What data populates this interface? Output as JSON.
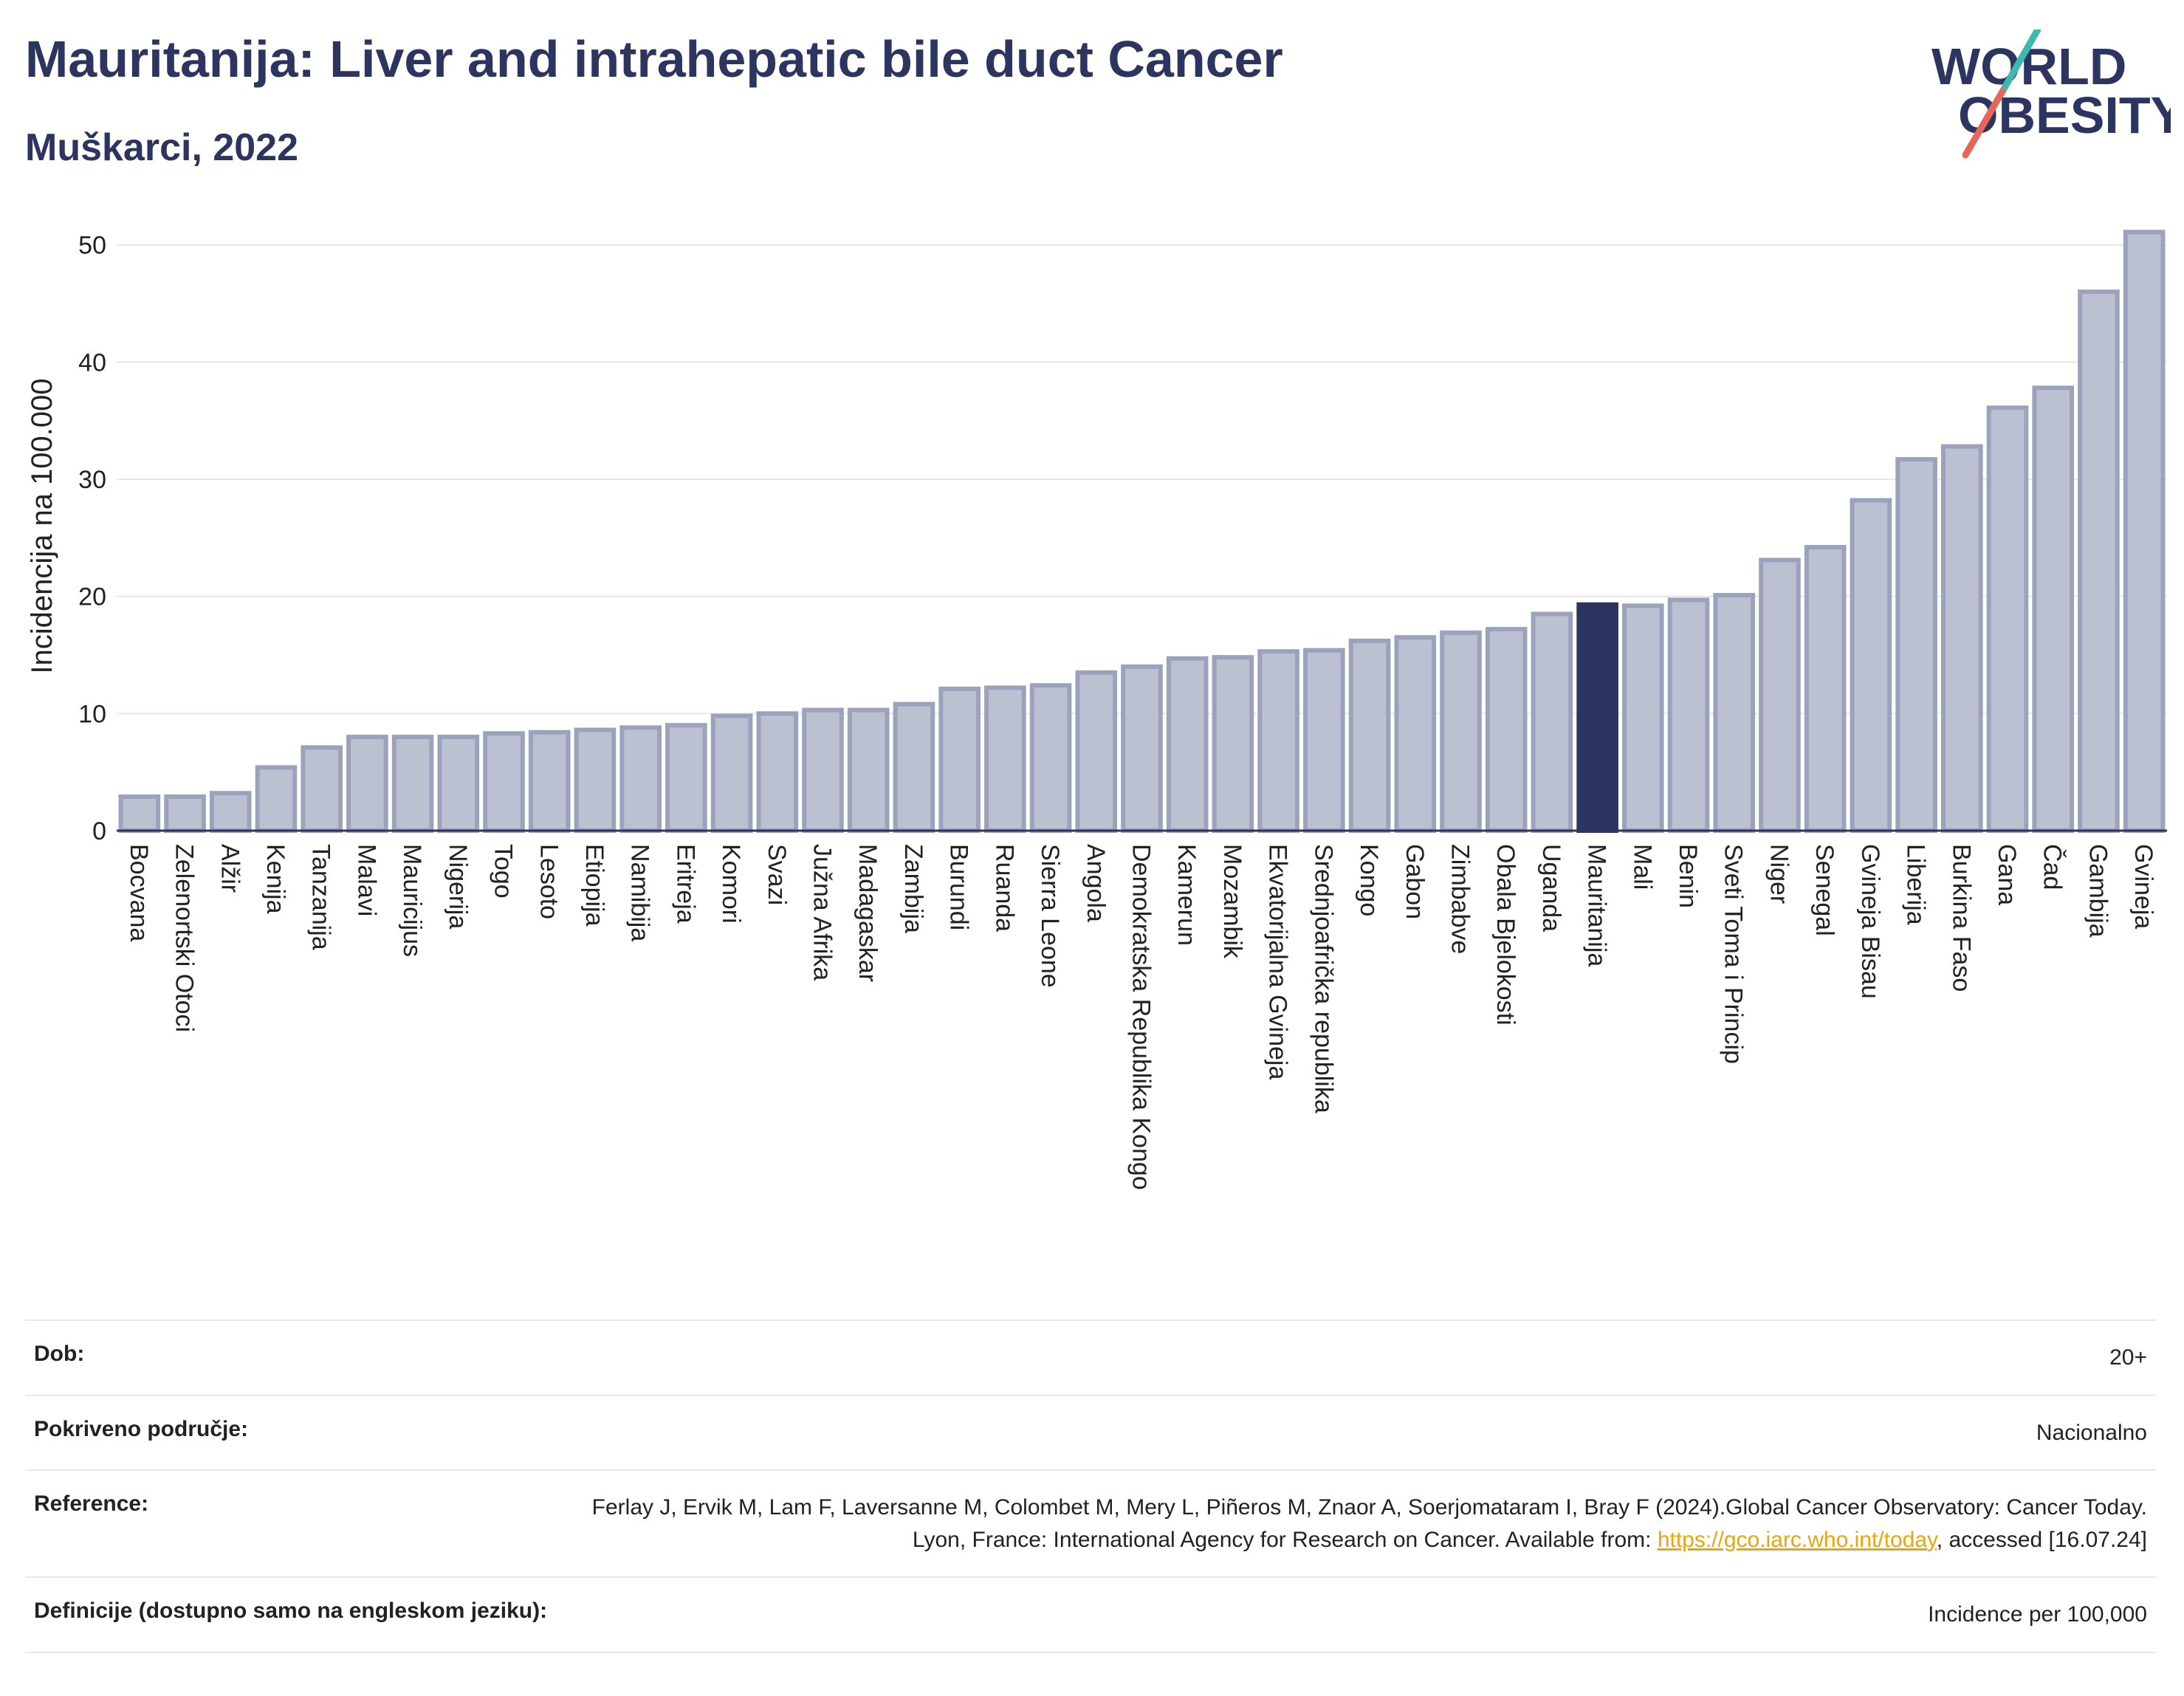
{
  "header": {
    "title": "Mauritanija: Liver and intrahepatic bile duct Cancer",
    "subtitle": "Muškarci, 2022"
  },
  "logo": {
    "line1": "WORLD",
    "line2": "OBESITY",
    "colors": {
      "slash_top": "#3fb8b0",
      "slash_bottom": "#e5675a",
      "text": "#2b3560"
    }
  },
  "colors": {
    "bar": "#bcc1d1",
    "bar_stroke": "#9ba2bb",
    "highlight": "#2b3560"
  },
  "chart_data": {
    "type": "bar",
    "ylabel": "Incidencija na 100.000",
    "ylim": [
      0,
      52
    ],
    "yticks": [
      0,
      10,
      20,
      30,
      40,
      50
    ],
    "grid": true,
    "highlight": "Mauritanija",
    "categories": [
      "Bocvana",
      "Zelenortski Otoci",
      "Alžir",
      "Kenija",
      "Tanzanija",
      "Malavi",
      "Mauricijus",
      "Nigerija",
      "Togo",
      "Lesoto",
      "Etiopija",
      "Namibija",
      "Eritreja",
      "Komori",
      "Svazi",
      "Južna Afrika",
      "Madagaskar",
      "Zambija",
      "Burundi",
      "Ruanda",
      "Sierra Leone",
      "Angola",
      "Demokratska Republika Kongo",
      "Kamerun",
      "Mozambik",
      "Ekvatorijalna Gvineja",
      "Srednjoafrička republika",
      "Kongo",
      "Gabon",
      "Zimbabve",
      "Obala Bjelokosti",
      "Uganda",
      "Mauritanija",
      "Mali",
      "Benin",
      "Sveti Toma i Princip",
      "Niger",
      "Senegal",
      "Gvineja Bisau",
      "Liberija",
      "Burkina Faso",
      "Gana",
      "Čad",
      "Gambija",
      "Gvineja"
    ],
    "values": [
      2.9,
      2.9,
      3.2,
      5.4,
      7.1,
      8.0,
      8.0,
      8.0,
      8.3,
      8.4,
      8.6,
      8.8,
      9.0,
      9.8,
      10.0,
      10.3,
      10.3,
      10.8,
      12.1,
      12.2,
      12.4,
      13.5,
      14.0,
      14.7,
      14.8,
      15.3,
      15.4,
      16.2,
      16.5,
      16.9,
      17.2,
      18.5,
      19.3,
      19.2,
      19.7,
      20.1,
      23.1,
      24.2,
      28.2,
      31.7,
      32.8,
      36.1,
      37.8,
      46.0,
      51.1
    ]
  },
  "info": [
    {
      "key": "Dob:",
      "value": "20+"
    },
    {
      "key": "Pokriveno područje:",
      "value": "Nacionalno"
    },
    {
      "key": "Reference:",
      "value_pre": "Ferlay J, Ervik M, Lam F, Laversanne M, Colombet M, Mery L, Piñeros M, Znaor A, Soerjomataram I, Bray F (2024).Global Cancer Observatory: Cancer Today. Lyon, France: International Agency for Research on Cancer. Available from: ",
      "link": "https://gco.iarc.who.int/today",
      "value_post": ", accessed [16.07.24]"
    },
    {
      "key": "Definicije (dostupno samo na engleskom jeziku):",
      "value": "Incidence per 100,000"
    }
  ]
}
